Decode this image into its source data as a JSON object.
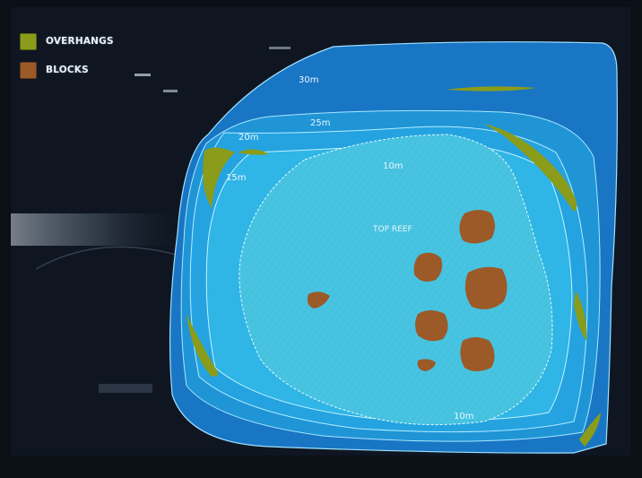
{
  "legend": {
    "items": [
      {
        "label": "OVERHANGS",
        "color": "#8a9c1a"
      },
      {
        "label": "BLOCKS",
        "color": "#9b5a28"
      }
    ]
  },
  "depth_labels": {
    "m30": "30m",
    "m25": "25m",
    "m20": "20m",
    "m15": "15m",
    "m10_top": "10m",
    "m10_bottom": "10m"
  },
  "top_reef_label": "TOP REEF",
  "colors": {
    "screen_dark": "#0b0f16",
    "depth_30": "#1976c4",
    "depth_25": "#1f95d6",
    "depth_20": "#24a3e0",
    "depth_15": "#2fb5e6",
    "top_reef": "#45c2df",
    "overhang": "#8a9c1a",
    "block": "#9b5a28"
  }
}
